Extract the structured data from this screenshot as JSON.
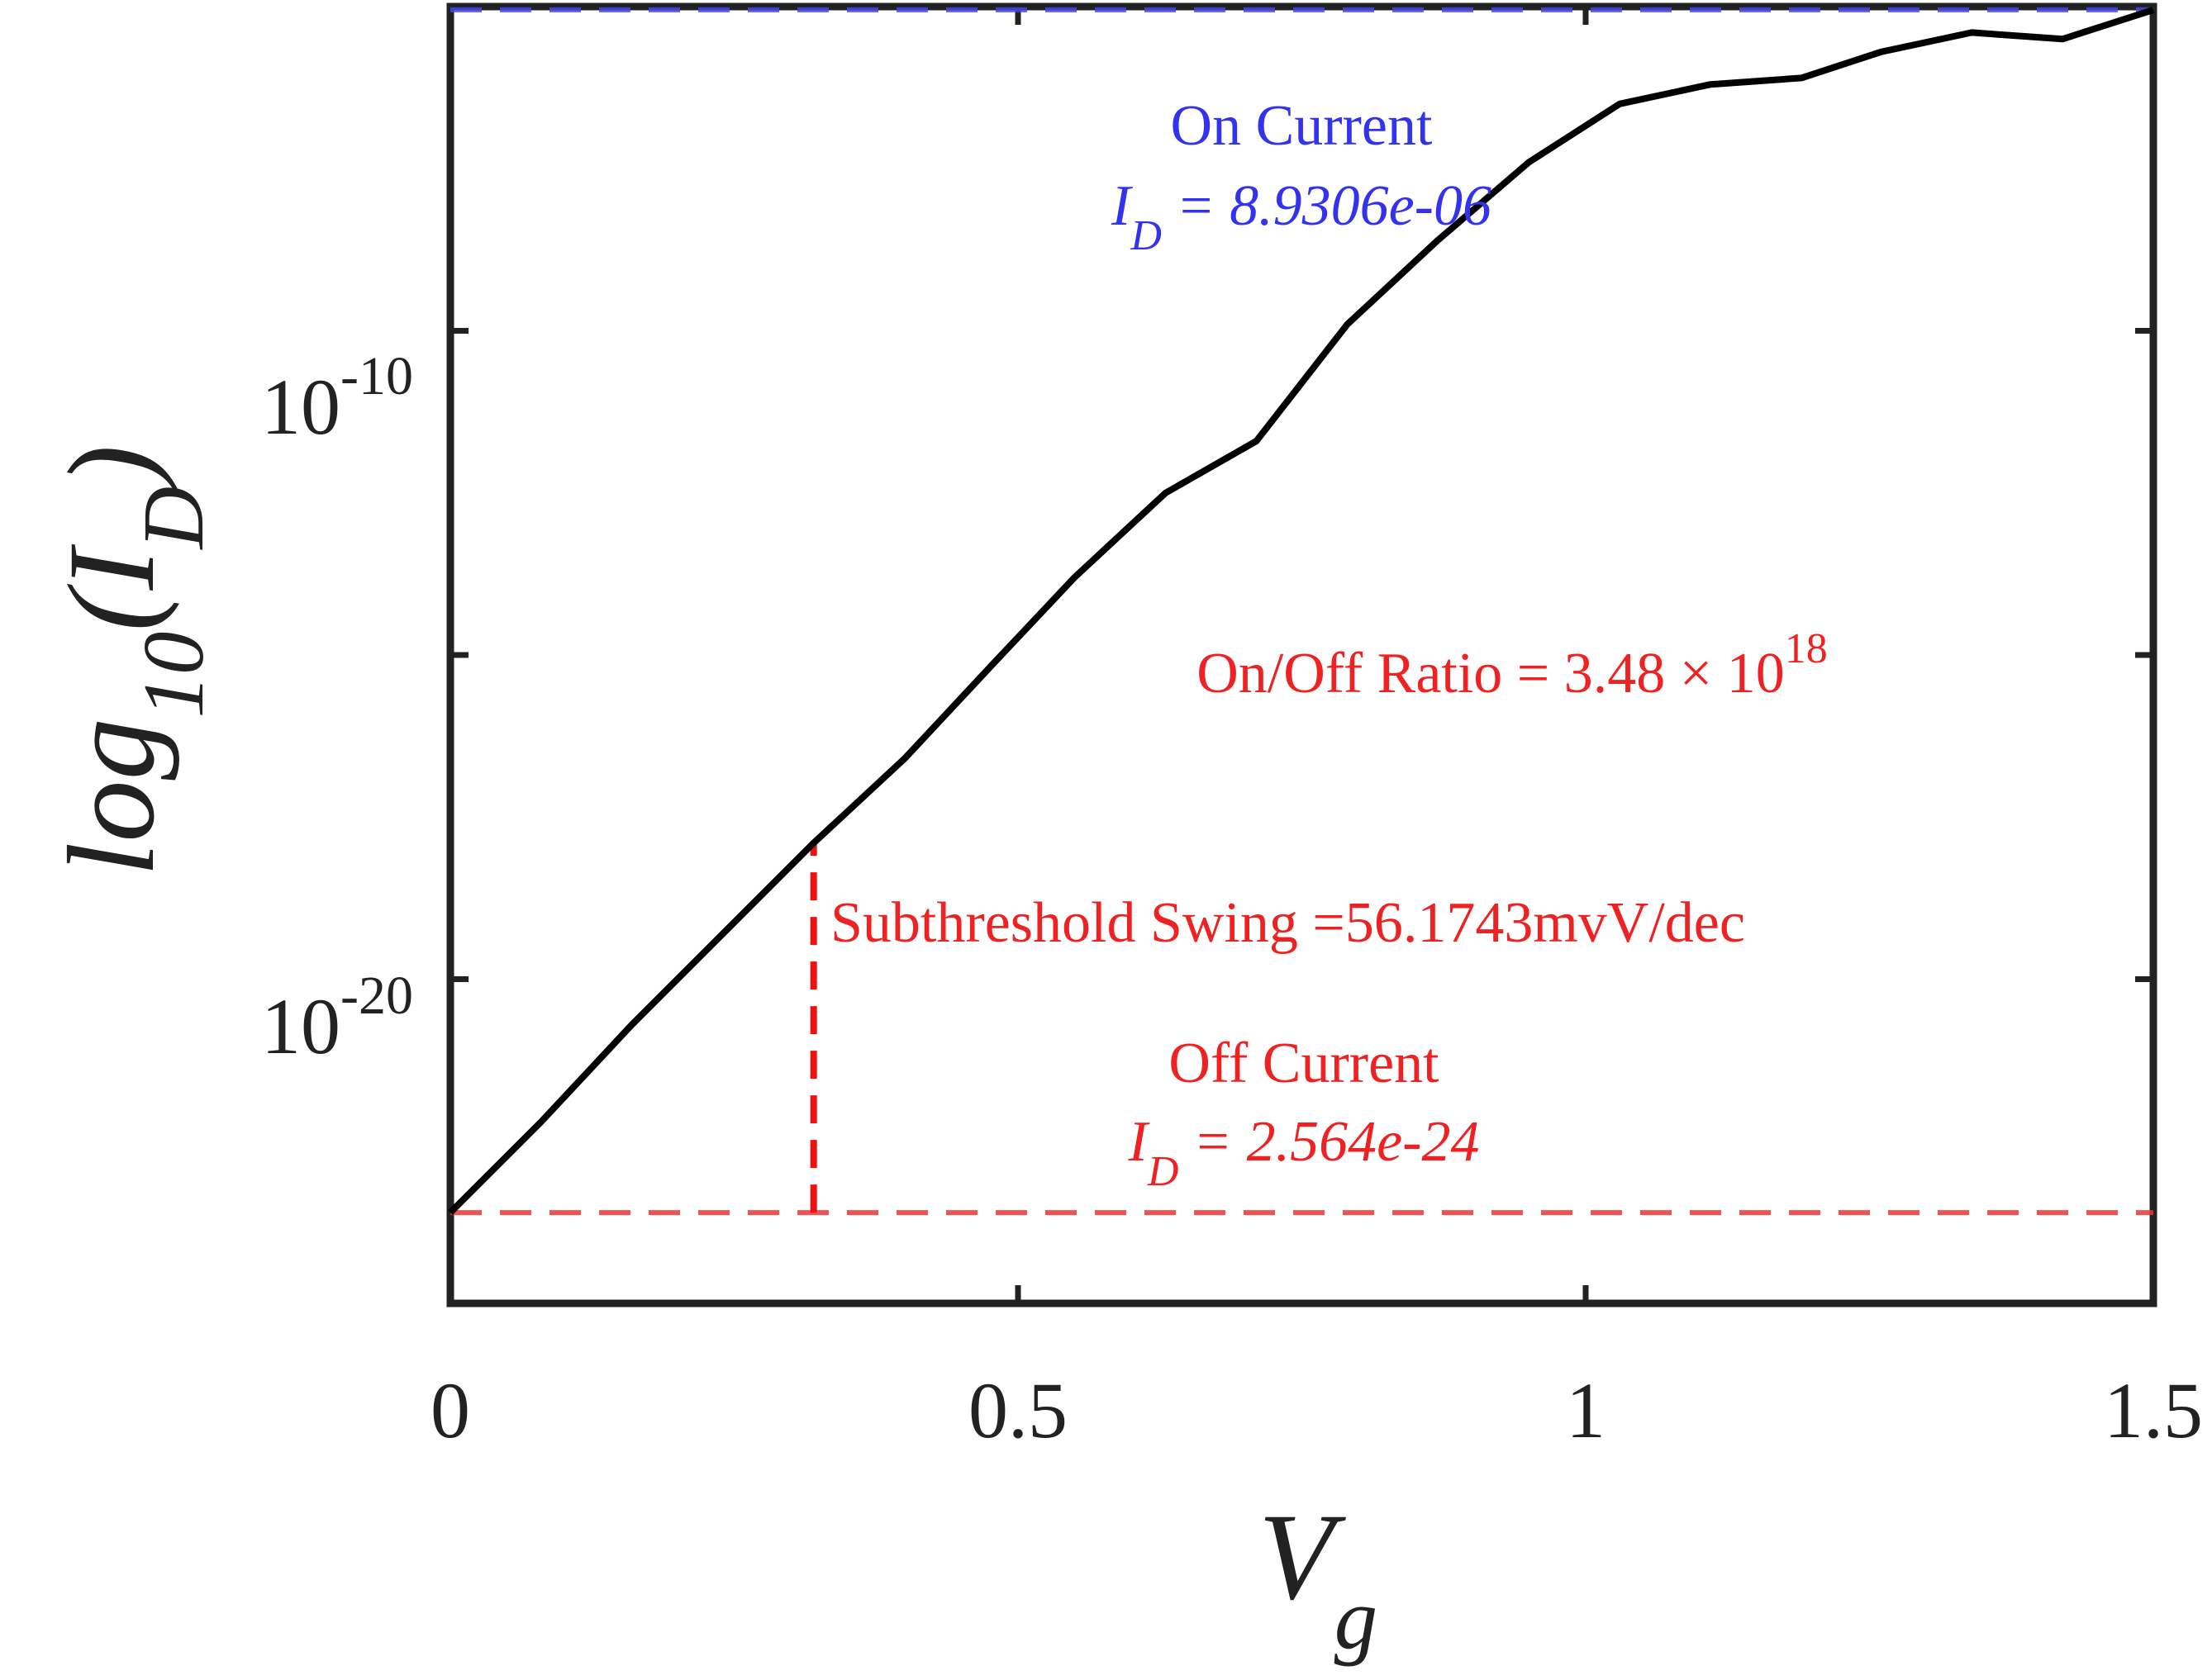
{
  "chart_data": {
    "type": "line",
    "title": "",
    "xlabel": {
      "main": "V",
      "sub": "g"
    },
    "ylabel": {
      "prefix": "log",
      "sub1": "10",
      "paren_open": "(",
      "var": "I",
      "sub2": "D",
      "paren_close": ")"
    },
    "xlim": [
      0,
      1.5
    ],
    "ylim_log10": [
      -25.0,
      -5.0
    ],
    "yscale": "log",
    "grid": false,
    "x_ticks": [
      {
        "value": 0,
        "label": "0"
      },
      {
        "value": 0.5,
        "label": "0.5"
      },
      {
        "value": 1,
        "label": "1"
      },
      {
        "value": 1.5,
        "label": "1.5"
      }
    ],
    "y_ticks": [
      {
        "log10": -20,
        "base": "10",
        "exp": "-20"
      },
      {
        "log10": -10,
        "base": "10",
        "exp": "-10"
      }
    ],
    "y_minor_ticks_log10": [
      -15
    ],
    "series": [
      {
        "color": "#000000",
        "x": [
          0,
          0.08,
          0.16,
          0.24,
          0.32,
          0.4,
          0.48,
          0.55,
          0.63,
          0.71,
          0.79,
          0.87,
          0.95,
          1.03,
          1.11,
          1.19,
          1.26,
          1.34,
          1.42,
          1.5
        ],
        "log10_y": [
          -23.6,
          -22.2,
          -20.7,
          -19.3,
          -17.9,
          -16.6,
          -15.1,
          -13.8,
          -12.5,
          -11.7,
          -9.9,
          -8.6,
          -7.4,
          -6.5,
          -6.2,
          -6.1,
          -5.7,
          -5.4,
          -5.5,
          -5.05
        ]
      }
    ],
    "reference_lines": [
      {
        "name": "on-current-line",
        "axis": "y",
        "log10": -5.05,
        "style": "dashed",
        "color": "#4444ee"
      },
      {
        "name": "off-current-line",
        "axis": "y",
        "log10": -23.6,
        "style": "dashed",
        "color": "#ee3333"
      },
      {
        "name": "subthreshold-line",
        "axis": "x",
        "x": 0.32,
        "log10_from": -23.6,
        "log10_to": -17.9,
        "style": "dashed",
        "color": "#ee1111"
      }
    ],
    "annotations": {
      "on_title": "On Current",
      "on_value": {
        "var": "I",
        "sub": "D",
        "text": " = 8.9306e-06"
      },
      "ratio": {
        "text": "On/Off Ratio = 3.48 × 10",
        "sup": "18"
      },
      "swing": "Subthreshold Swing =56.1743mvV/dec",
      "off_title": "Off Current",
      "off_value": {
        "var": "I",
        "sub": "D",
        "text": " = 2.564e-24"
      }
    },
    "colors": {
      "on": "#3333ee",
      "off": "#ee2222",
      "line": "#000000",
      "axis": "#222222"
    }
  }
}
